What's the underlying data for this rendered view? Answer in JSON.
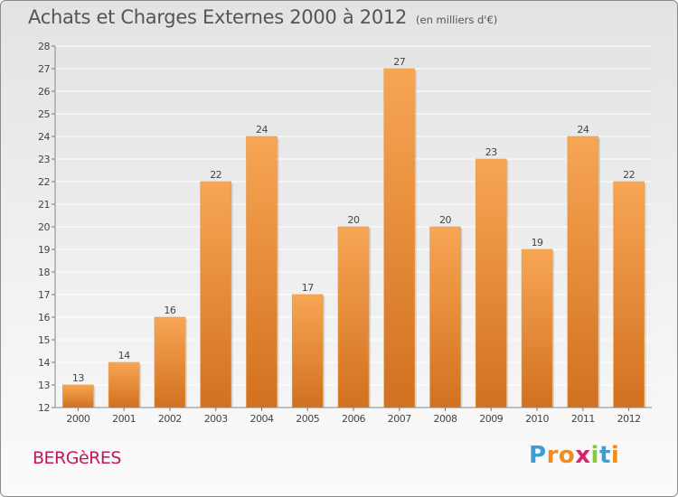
{
  "chart_data": {
    "type": "bar",
    "title": "Achats et Charges Externes 2000 à 2012",
    "subtitle": "(en milliers d'€)",
    "categories": [
      "2000",
      "2001",
      "2002",
      "2003",
      "2004",
      "2005",
      "2006",
      "2007",
      "2008",
      "2009",
      "2010",
      "2011",
      "2012"
    ],
    "values": [
      13,
      14,
      16,
      22,
      24,
      17,
      20,
      27,
      20,
      23,
      19,
      24,
      22
    ],
    "data_labels": [
      "13",
      "14",
      "16",
      "22",
      "24",
      "17",
      "20",
      "27",
      "20",
      "23",
      "19",
      "24",
      "22"
    ],
    "ylim": [
      12,
      28
    ],
    "yticks": [
      "12",
      "13",
      "14",
      "15",
      "16",
      "17",
      "18",
      "19",
      "20",
      "21",
      "22",
      "23",
      "24",
      "25",
      "26",
      "27",
      "28"
    ],
    "grid": true,
    "bar_color_top": "#f7a654",
    "bar_color_bottom": "#d2711f"
  },
  "place": "BERGèRES",
  "logo": {
    "letters": [
      "P",
      "r",
      "o",
      "x",
      "i",
      "t",
      "i"
    ],
    "colors": [
      "#3b9fd6",
      "#f28c1c",
      "#f28c1c",
      "#d6246e",
      "#8cc63f",
      "#3b9fd6",
      "#f28c1c"
    ]
  }
}
